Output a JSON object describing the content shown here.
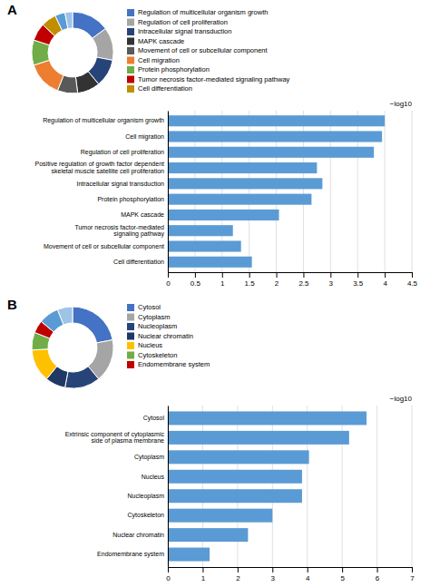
{
  "chart_data": [
    {
      "type": "pie",
      "title": "A",
      "categories": [
        "Regulation of multicellular organism growth",
        "Regulation of cell proliferation",
        "Intracellular signal transduction",
        "MAPK cascade",
        "Movement of cell or subcellular component",
        "Cell migration",
        "Protein phosphorylation",
        "Tumor necrosis factor-mediated signaling pathway",
        "Cell differentiation",
        null,
        null
      ],
      "values": [
        15,
        13,
        11,
        9,
        8,
        14,
        10,
        7,
        6,
        4,
        3
      ],
      "colors": [
        "#4472C4",
        "#A5A5A5",
        "#264478",
        "#333333",
        "#595959",
        "#ED7D31",
        "#70AD47",
        "#C00000",
        "#BF8F00",
        "#5B9BD5",
        "#9DC3E6"
      ],
      "legend": "right"
    },
    {
      "type": "bar",
      "orientation": "horizontal",
      "xlabel": "−log10",
      "categories": [
        "Cell differentiation",
        "Movement of cell or subcellular component",
        "Tumor necrosis factor-mediated\nsignaling pathway",
        "MAPK cascade",
        "Protein phosphorylation",
        "Intracellular signal transduction",
        "Positive regulation of growth factor dependent\nskeletal muscle satellite cell proliferation",
        "Regulation of cell proliferation",
        "Cell migration",
        "Regulation of multicellular organism growth"
      ],
      "values": [
        1.55,
        1.35,
        1.2,
        2.05,
        2.65,
        2.85,
        2.75,
        3.8,
        3.95,
        4.0
      ],
      "color": "#5B9BD5",
      "xlim": [
        0,
        4.5
      ],
      "xticks": [
        0,
        0.5,
        1,
        1.5,
        2,
        2.5,
        3,
        3.5,
        4,
        4.5
      ],
      "grid": true
    },
    {
      "type": "pie",
      "title": "B",
      "categories": [
        "Cytosol",
        "Cytoplasm",
        "Nucleoplasm",
        "Nuclear chromatin",
        "Nucleus",
        "Cytoskeleton",
        "Endomembrane system",
        null,
        null
      ],
      "values": [
        22,
        17,
        14,
        8,
        13,
        7,
        5,
        8,
        6
      ],
      "colors": [
        "#4472C4",
        "#A5A5A5",
        "#264478",
        "#1F3864",
        "#FFC000",
        "#70AD47",
        "#C00000",
        "#5B9BD5",
        "#9DC3E6"
      ],
      "legend": "right"
    },
    {
      "type": "bar",
      "orientation": "horizontal",
      "xlabel": "−log10",
      "categories": [
        "Endomembrane system",
        "Nuclear chromatin",
        "Cytoskeleton",
        "Nucleoplasm",
        "Nucleus",
        "Cytoplasm",
        "Extrinsic component of cytoplasmic\nside of plasma membrane",
        "Cytosol"
      ],
      "values": [
        1.2,
        2.3,
        3.0,
        3.85,
        3.85,
        4.05,
        5.2,
        5.7
      ],
      "color": "#5B9BD5",
      "xlim": [
        0,
        7
      ],
      "xticks": [
        0,
        1,
        2,
        3,
        4,
        5,
        6,
        7
      ],
      "grid": true
    }
  ]
}
